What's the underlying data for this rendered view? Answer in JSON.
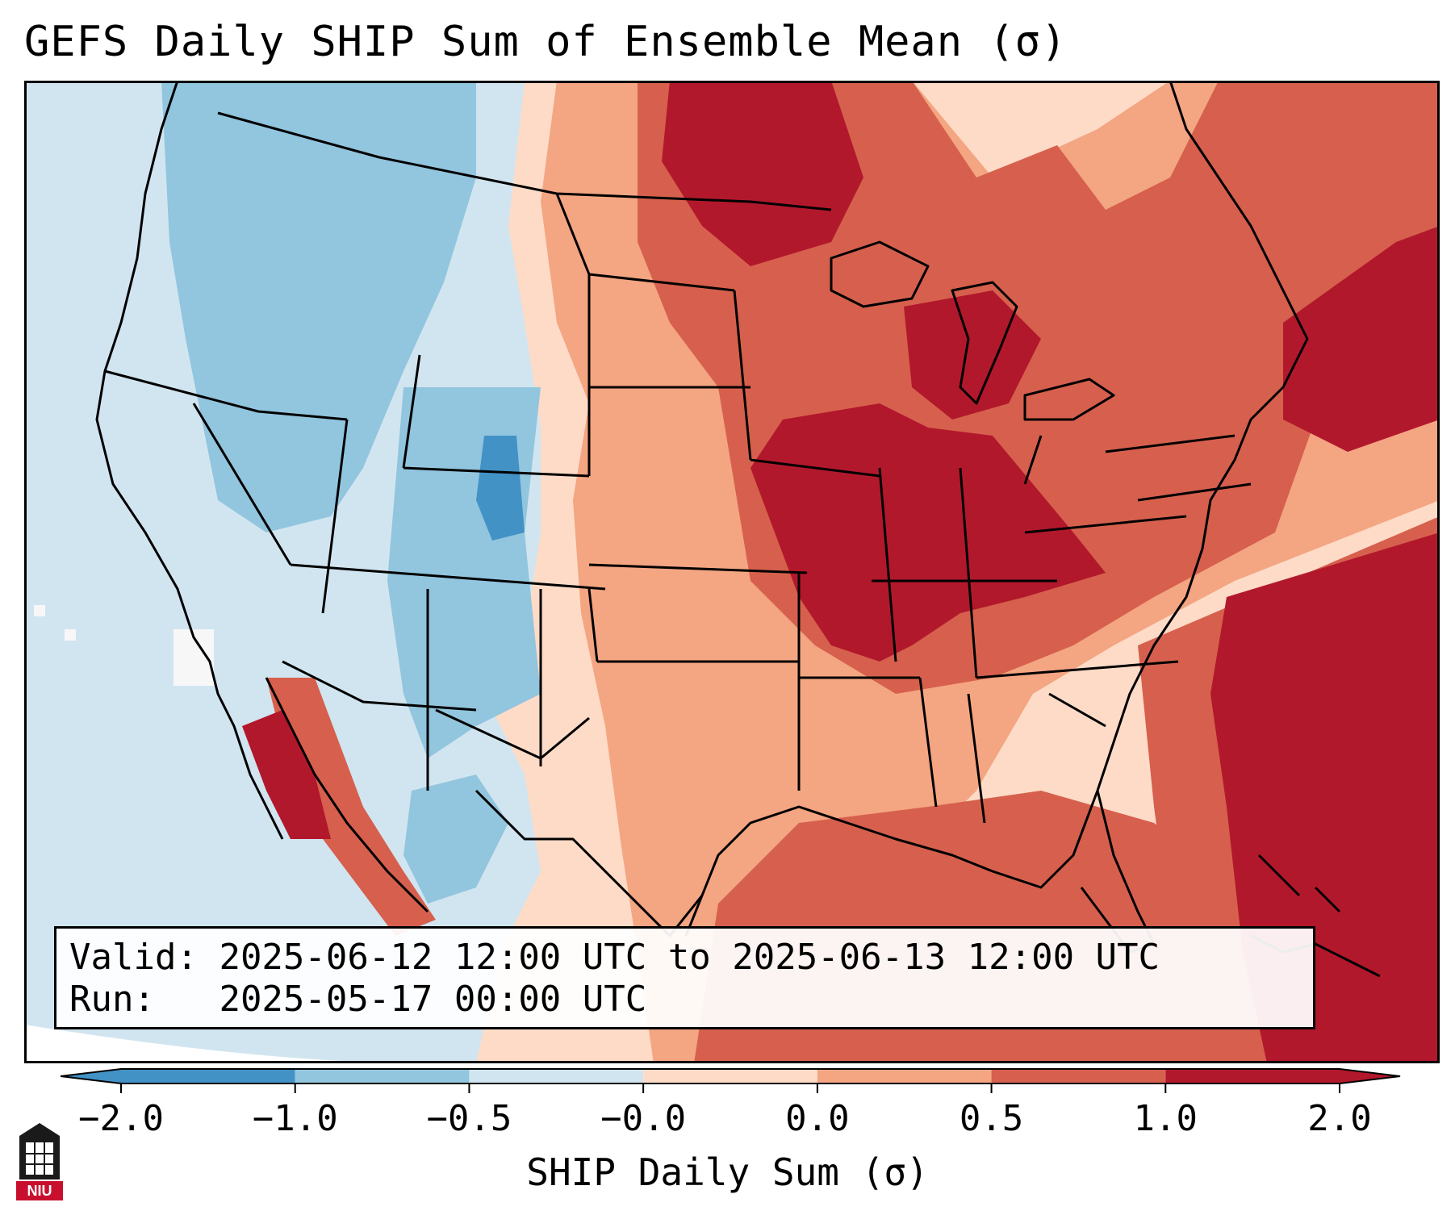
{
  "title": "GEFS Daily SHIP Sum of Ensemble Mean (σ)",
  "info": {
    "valid_label": "Valid:",
    "valid_value": "2025-06-12 12:00 UTC to 2025-06-13 12:00 UTC",
    "run_label": "Run:",
    "run_value": "2025-05-17 00:00 UTC"
  },
  "colorbar": {
    "title": "SHIP Daily Sum (σ)",
    "ticks": [
      "−2.0",
      "−1.0",
      "−0.5",
      "−0.0",
      "0.0",
      "0.5",
      "1.0",
      "2.0"
    ],
    "colors": [
      "#4292c6",
      "#92c5de",
      "#d1e5f0",
      "#f7f7f7",
      "#fddbc7",
      "#f4a582",
      "#d6604d",
      "#b2182b"
    ]
  },
  "logo": {
    "text": "NIU"
  },
  "colors": {
    "ocean_background": "#d1e5f0",
    "border": "#000000"
  }
}
